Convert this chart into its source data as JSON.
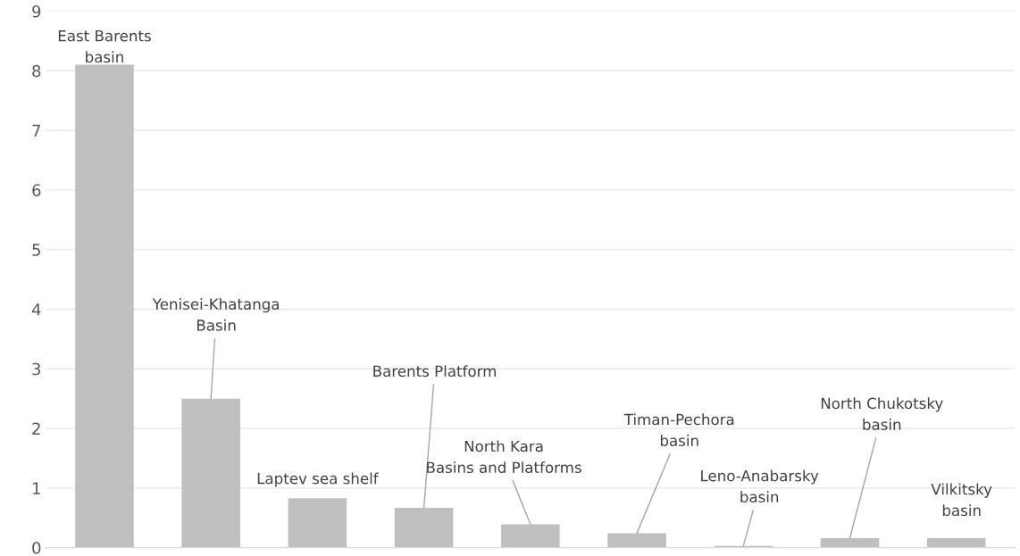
{
  "chart_data": {
    "type": "bar",
    "categories": [
      "East Barents\nbasin",
      "Yenisei-Khatanga\nBasin",
      "Laptev sea shelf",
      "Barents Platform",
      "North Kara\nBasins and Platforms",
      "Timan-Pechora\nbasin",
      "Leno-Anabarsky\nbasin",
      "North Chukotsky\nbasin",
      "Vilkitsky\nbasin"
    ],
    "values": [
      8.1,
      2.5,
      0.83,
      0.67,
      0.39,
      0.24,
      0.03,
      0.16,
      0.16
    ],
    "color": "#bfbfbf",
    "ylim": [
      0,
      9
    ],
    "yticks": [
      0,
      1,
      2,
      3,
      4,
      5,
      6,
      7,
      8,
      9
    ],
    "grid": "y",
    "tick_labels": "y"
  }
}
